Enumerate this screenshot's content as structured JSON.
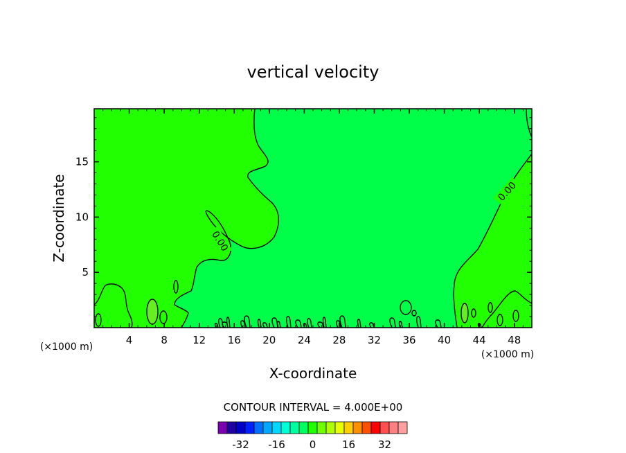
{
  "chart_data": {
    "type": "contour",
    "title": "vertical velocity",
    "xlabel": "X-coordinate",
    "ylabel": "Z-coordinate",
    "x_unit_label": "(×1000 m)",
    "x_ticks": [
      4,
      8,
      12,
      16,
      20,
      24,
      28,
      32,
      36,
      40,
      44,
      48
    ],
    "y_ticks": [
      5,
      10,
      15
    ],
    "xlim": [
      0,
      50
    ],
    "ylim": [
      0,
      19.8
    ],
    "contour_interval_text": "CONTOUR INTERVAL = 4.000E+00",
    "contour_labels": [
      "0.00",
      "0.00"
    ],
    "colors": {
      "positive_fill": "#22ff00",
      "negative_fill": "#00ff48",
      "small_positive_fill": "#66ee22",
      "line": "#000000"
    },
    "colorbar": {
      "colors": [
        "#7a00b0",
        "#2000a0",
        "#0000c8",
        "#0020ff",
        "#0070ff",
        "#00a8ff",
        "#00d8ff",
        "#00ffd8",
        "#00ffa0",
        "#00ff60",
        "#20ff00",
        "#70ff00",
        "#b0ff00",
        "#e8ff00",
        "#ffd000",
        "#ff9000",
        "#ff5000",
        "#ff0000",
        "#ff5050",
        "#ff8080",
        "#ffa0a0"
      ],
      "tick_labels": [
        "-32",
        "-16",
        "0",
        "16",
        "32"
      ],
      "tick_values": [
        -32,
        -16,
        0,
        16,
        32
      ]
    }
  }
}
